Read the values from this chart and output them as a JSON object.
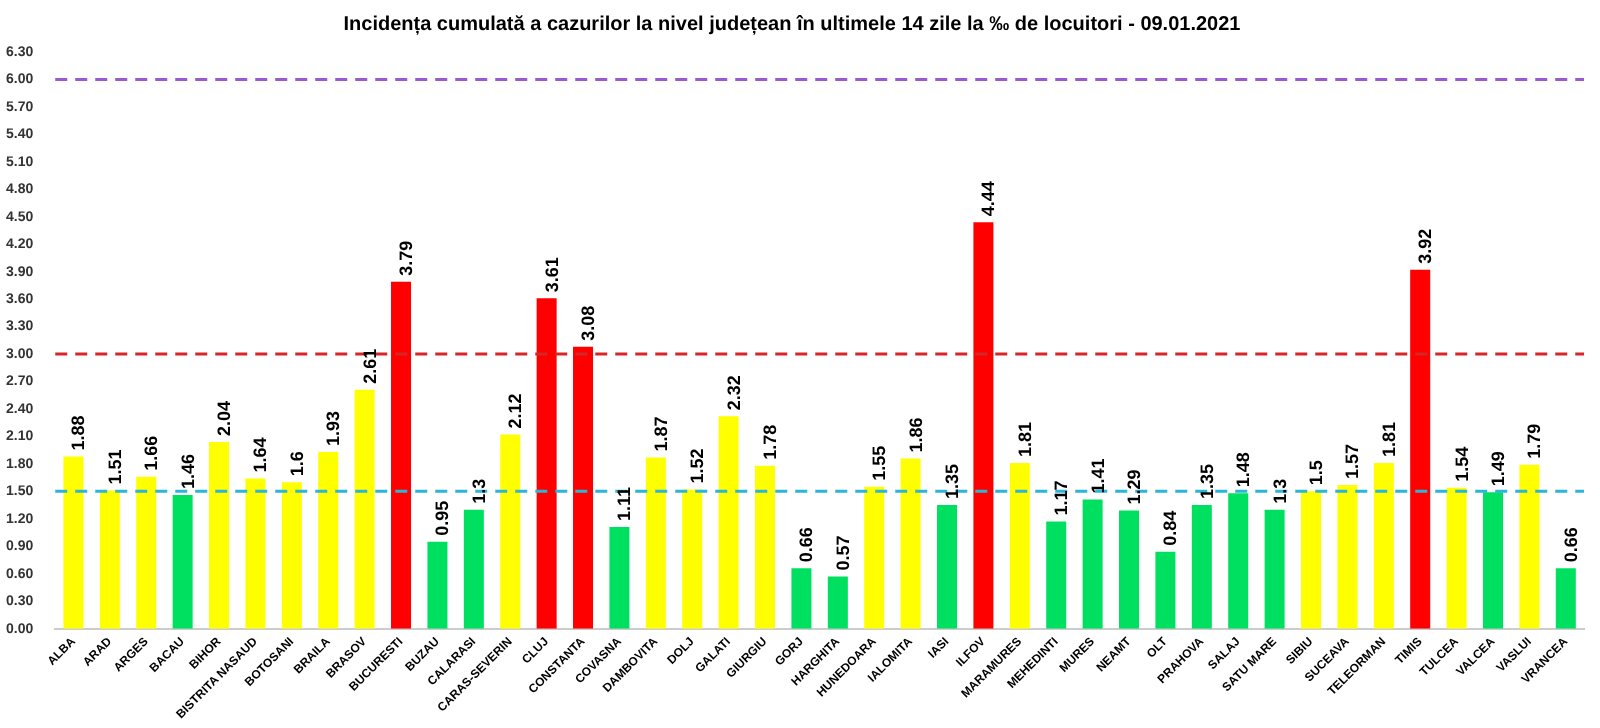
{
  "chart_data": {
    "type": "bar",
    "title": "Incidența cumulată a cazurilor la nivel județean în ultimele 14 zile la ‰ de locuitori - 09.01.2021",
    "categories": [
      "ALBA",
      "ARAD",
      "ARGES",
      "BACAU",
      "BIHOR",
      "BISTRITA NASAUD",
      "BOTOSANI",
      "BRAILA",
      "BRASOV",
      "BUCURESTI",
      "BUZAU",
      "CALARASI",
      "CARAS-SEVERIN",
      "CLUJ",
      "CONSTANTA",
      "COVASNA",
      "DAMBOVITA",
      "DOLJ",
      "GALATI",
      "GIURGIU",
      "GORJ",
      "HARGHITA",
      "HUNEDOARA",
      "IALOMITA",
      "IASI",
      "ILFOV",
      "MARAMURES",
      "MEHEDINTI",
      "MURES",
      "NEAMT",
      "OLT",
      "PRAHOVA",
      "SALAJ",
      "SATU MARE",
      "SIBIU",
      "SUCEAVA",
      "TELEORMAN",
      "TIMIS",
      "TULCEA",
      "VALCEA",
      "VASLUI",
      "VRANCEA"
    ],
    "values": [
      1.88,
      1.51,
      1.66,
      1.46,
      2.04,
      1.64,
      1.6,
      1.93,
      2.61,
      3.79,
      0.95,
      1.3,
      2.12,
      3.61,
      3.08,
      1.11,
      1.87,
      1.52,
      2.32,
      1.78,
      0.66,
      0.57,
      1.55,
      1.86,
      1.35,
      4.44,
      1.81,
      1.17,
      1.41,
      1.29,
      0.84,
      1.35,
      1.48,
      1.3,
      1.5,
      1.57,
      1.81,
      3.92,
      1.54,
      1.49,
      1.79,
      0.66
    ],
    "colors": [
      "#ffff00",
      "#ffff00",
      "#ffff00",
      "#00e060",
      "#ffff00",
      "#ffff00",
      "#ffff00",
      "#ffff00",
      "#ffff00",
      "#ff0000",
      "#00e060",
      "#00e060",
      "#ffff00",
      "#ff0000",
      "#ff0000",
      "#00e060",
      "#ffff00",
      "#ffff00",
      "#ffff00",
      "#ffff00",
      "#00e060",
      "#00e060",
      "#ffff00",
      "#ffff00",
      "#00e060",
      "#ff0000",
      "#ffff00",
      "#00e060",
      "#00e060",
      "#00e060",
      "#00e060",
      "#00e060",
      "#00e060",
      "#00e060",
      "#ffff00",
      "#ffff00",
      "#ffff00",
      "#ff0000",
      "#ffff00",
      "#00e060",
      "#ffff00",
      "#00e060"
    ],
    "ylim": [
      0,
      6.3
    ],
    "yticks": [
      {
        "value": 0,
        "label": "0.00"
      },
      {
        "value": 0.3,
        "label": "0.30"
      },
      {
        "value": 0.6,
        "label": "0.60"
      },
      {
        "value": 0.9,
        "label": "0.90"
      },
      {
        "value": 1.2,
        "label": "1.20"
      },
      {
        "value": 1.5,
        "label": "1.50"
      },
      {
        "value": 1.8,
        "label": "1.80"
      },
      {
        "value": 2.1,
        "label": "2.10"
      },
      {
        "value": 2.4,
        "label": "2.40"
      },
      {
        "value": 2.7,
        "label": "2.70"
      },
      {
        "value": 3,
        "label": "3.00"
      },
      {
        "value": 3.3,
        "label": "3.30"
      },
      {
        "value": 3.6,
        "label": "3.60"
      },
      {
        "value": 3.9,
        "label": "3.90"
      },
      {
        "value": 4.2,
        "label": "4.20"
      },
      {
        "value": 4.5,
        "label": "4.50"
      },
      {
        "value": 4.8,
        "label": "4.80"
      },
      {
        "value": 5.1,
        "label": "5.10"
      },
      {
        "value": 5.4,
        "label": "5.40"
      },
      {
        "value": 5.7,
        "label": "5.70"
      },
      {
        "value": 6,
        "label": "6.00"
      },
      {
        "value": 6.3,
        "label": "6.30"
      }
    ],
    "ref_lines": [
      {
        "axis": "y",
        "value": 6,
        "color": "#9b59d0",
        "line_style": "dashed"
      },
      {
        "axis": "y",
        "value": 3,
        "color": "#d62728",
        "line_style": "dashed"
      },
      {
        "axis": "y",
        "value": 1.5,
        "color": "#2bb5d8",
        "line_style": "dashed"
      }
    ],
    "data_labels": true,
    "grid": false,
    "legend": false
  }
}
